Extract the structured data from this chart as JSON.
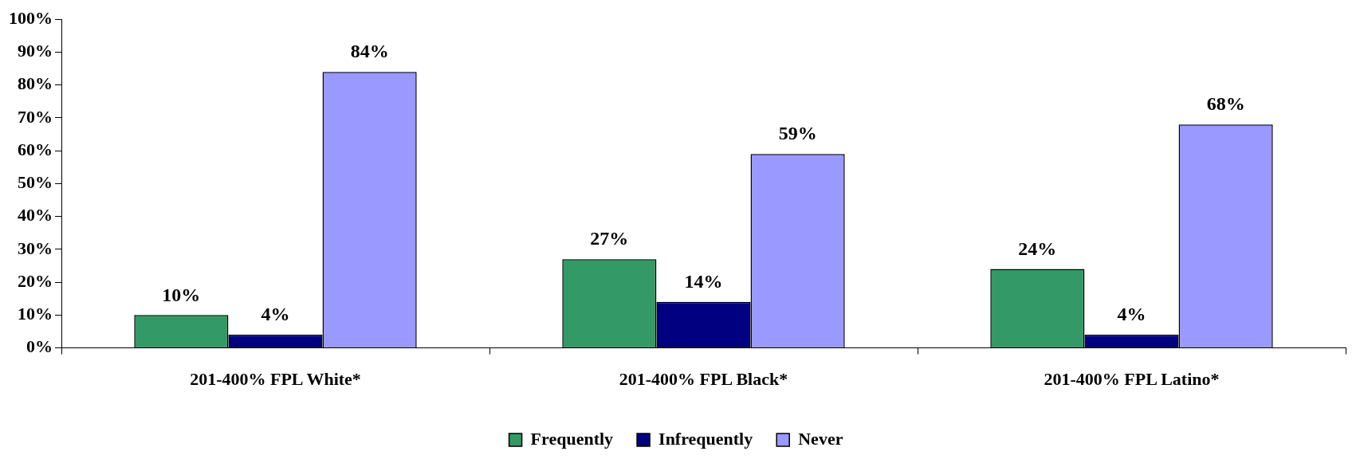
{
  "chart_data": {
    "type": "bar",
    "categories": [
      "201-400% FPL White*",
      "201-400% FPL Black*",
      "201-400% FPL Latino*"
    ],
    "series": [
      {
        "name": "Frequently",
        "color": "#339966",
        "values": [
          10,
          27,
          24
        ],
        "value_labels": [
          "10%",
          "27%",
          "24%"
        ]
      },
      {
        "name": "Infrequently",
        "color": "#000080",
        "values": [
          4,
          14,
          4
        ],
        "value_labels": [
          "4%",
          "14%",
          "4%"
        ]
      },
      {
        "name": "Never",
        "color": "#9999ff",
        "values": [
          84,
          59,
          68
        ],
        "value_labels": [
          "84%",
          "59%",
          "68%"
        ]
      }
    ],
    "ylim": [
      0,
      100
    ],
    "yticks": [
      {
        "value": 0,
        "label": "0%"
      },
      {
        "value": 10,
        "label": "10%"
      },
      {
        "value": 20,
        "label": "20%"
      },
      {
        "value": 30,
        "label": "30%"
      },
      {
        "value": 40,
        "label": "40%"
      },
      {
        "value": 50,
        "label": "50%"
      },
      {
        "value": 60,
        "label": "60%"
      },
      {
        "value": 70,
        "label": "70%"
      },
      {
        "value": 80,
        "label": "80%"
      },
      {
        "value": 90,
        "label": "90%"
      },
      {
        "value": 100,
        "label": "100%"
      }
    ],
    "grid": false,
    "legend": "bottom"
  }
}
